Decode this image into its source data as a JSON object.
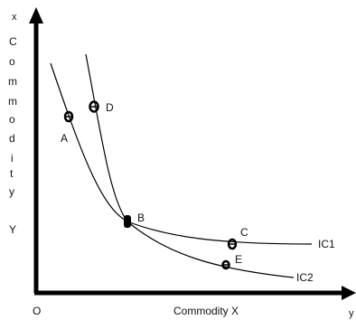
{
  "axes": {
    "y_end_label": "x",
    "x_end_label": "y",
    "origin_label": "O",
    "x_axis_title": "Commodity X",
    "y_axis_title_letters": [
      "C",
      "o",
      "m",
      "m",
      "o",
      "d",
      "i",
      "t",
      "y"
    ],
    "y_axis_title_second_word": "Y"
  },
  "curves": [
    {
      "label": "IC1"
    },
    {
      "label": "IC2"
    }
  ],
  "points": {
    "A": "A",
    "B": "B",
    "C": "C",
    "D": "D",
    "E": "E"
  },
  "colors": {
    "ink": "#111111"
  }
}
